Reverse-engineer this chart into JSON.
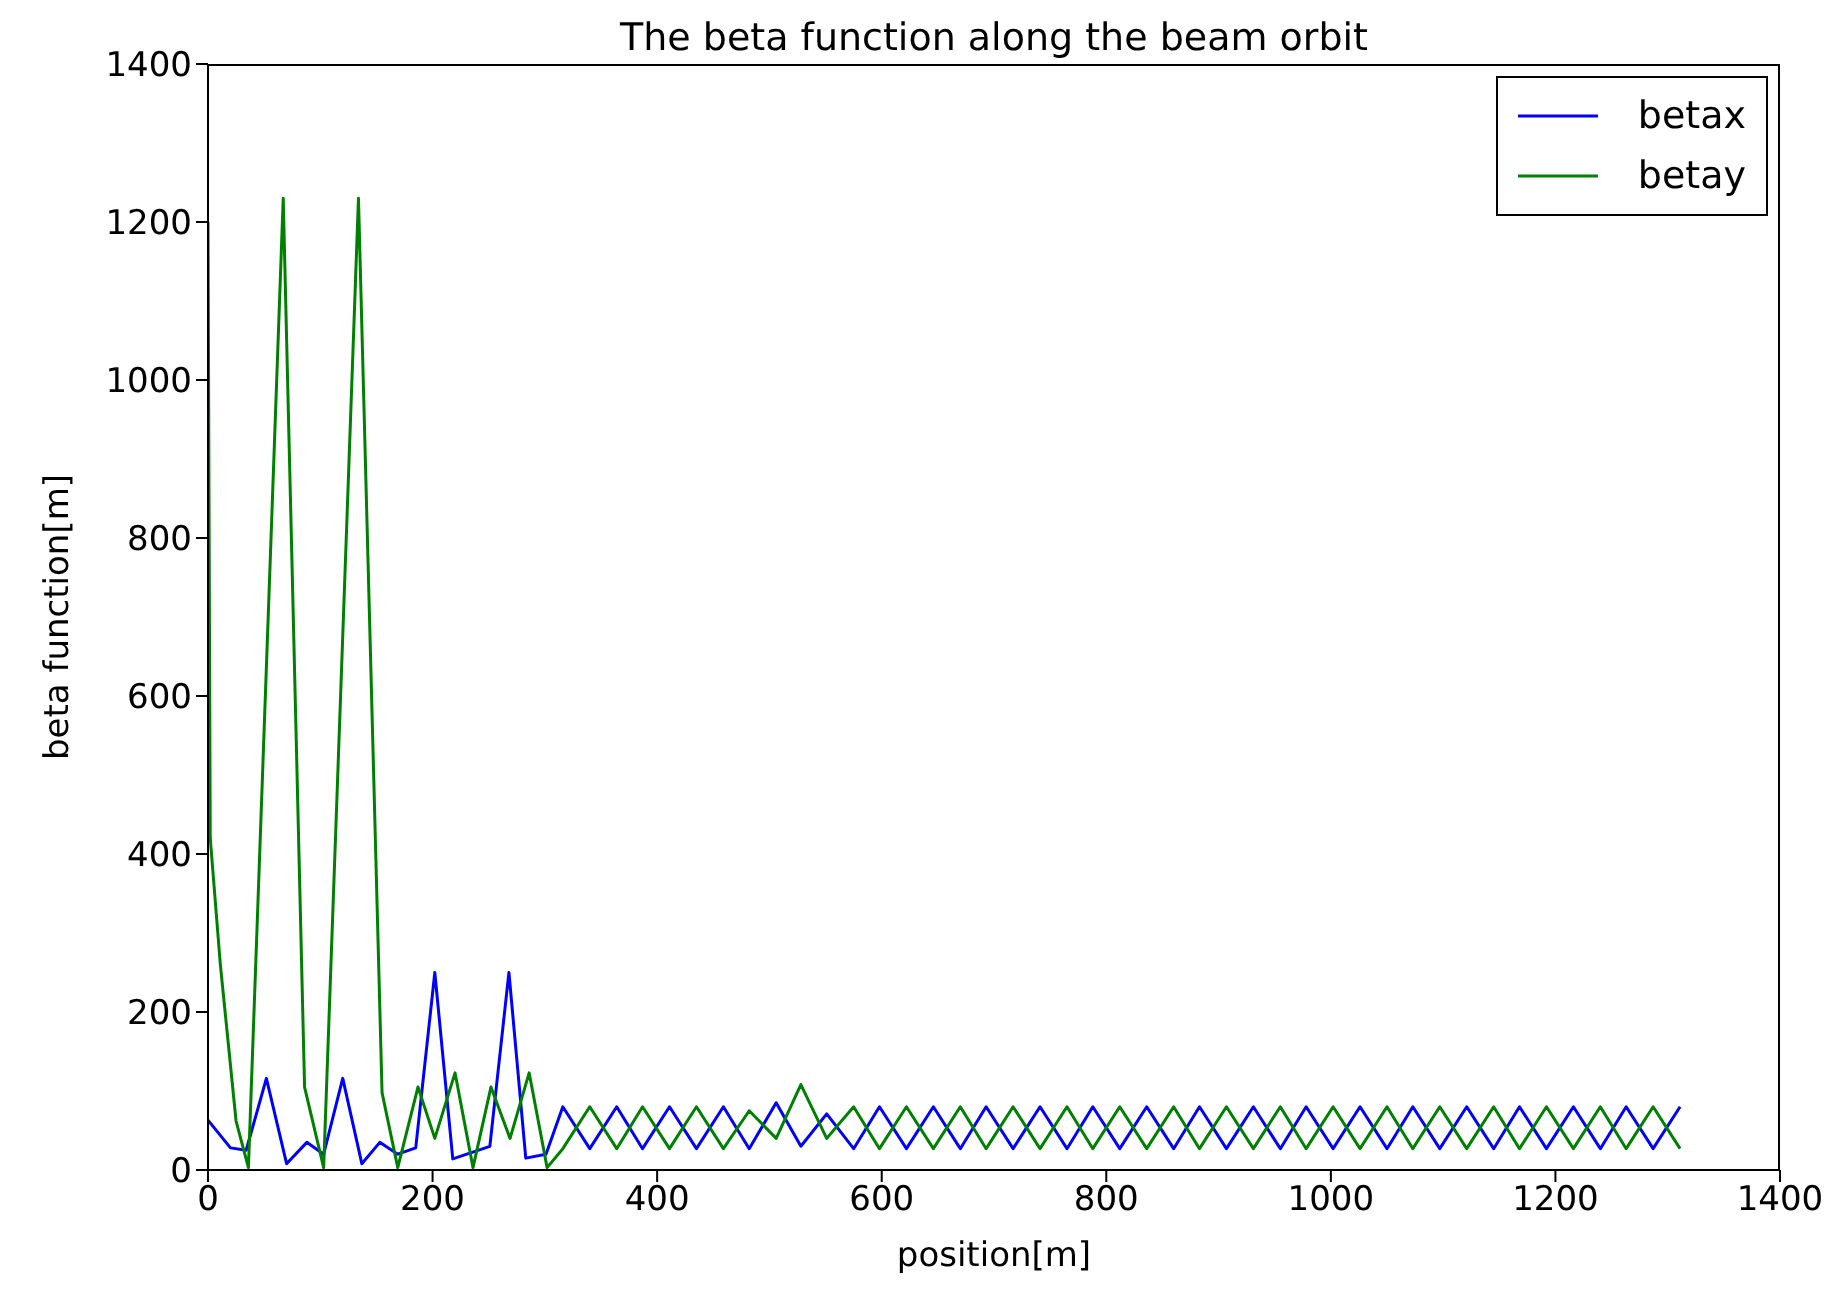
{
  "chart_data": {
    "type": "line",
    "title": "The beta function along the beam orbit",
    "xlabel": "position[m]",
    "ylabel": "beta function[m]",
    "xlim": [
      0,
      1400
    ],
    "ylim": [
      0,
      1400
    ],
    "xticks": [
      0,
      200,
      400,
      600,
      800,
      1000,
      1200,
      1400
    ],
    "yticks": [
      0,
      200,
      400,
      600,
      800,
      1000,
      1200,
      1400
    ],
    "grid": false,
    "legend": "top right",
    "marker": "none",
    "line_style": "solid",
    "series": [
      {
        "name": "betax",
        "color": "#0000ff",
        "x": [
          0,
          20,
          34,
          52,
          70,
          88,
          103,
          120,
          137,
          153,
          169,
          185,
          202,
          218,
          251,
          268,
          283,
          301,
          316,
          340,
          364,
          387,
          411,
          435,
          459,
          482,
          506,
          528,
          551,
          575,
          598,
          622,
          646,
          670,
          693,
          717,
          741,
          765,
          788,
          812,
          836,
          860,
          883,
          907,
          931,
          955,
          978,
          1002,
          1026,
          1050,
          1073,
          1097,
          1121,
          1145,
          1168,
          1192,
          1216,
          1240,
          1263,
          1287,
          1311
        ],
        "values": [
          63,
          28,
          25,
          116,
          8,
          35,
          20,
          116,
          8,
          35,
          20,
          28,
          250,
          14,
          30,
          250,
          15,
          20,
          80,
          27,
          80,
          27,
          80,
          27,
          80,
          27,
          85,
          30,
          71,
          27,
          80,
          27,
          80,
          27,
          80,
          27,
          80,
          27,
          80,
          27,
          80,
          27,
          80,
          27,
          80,
          27,
          80,
          27,
          80,
          27,
          80,
          27,
          80,
          27,
          80,
          27,
          80,
          27,
          80,
          27,
          80
        ]
      },
      {
        "name": "betay",
        "color": "#008000",
        "x": [
          0,
          2,
          11,
          25,
          36,
          67,
          86,
          103,
          134,
          155,
          169,
          187,
          202,
          220,
          236,
          252,
          269,
          286,
          302,
          316,
          340,
          364,
          387,
          411,
          435,
          459,
          482,
          506,
          528,
          551,
          575,
          598,
          622,
          646,
          670,
          693,
          717,
          741,
          765,
          788,
          812,
          836,
          860,
          883,
          907,
          931,
          955,
          978,
          1002,
          1026,
          1050,
          1073,
          1097,
          1121,
          1145,
          1168,
          1192,
          1216,
          1240,
          1263,
          1287,
          1311
        ],
        "values": [
          1200,
          420,
          260,
          62,
          3,
          1230,
          105,
          3,
          1230,
          98,
          3,
          105,
          40,
          123,
          3,
          105,
          40,
          123,
          3,
          27,
          80,
          27,
          80,
          27,
          80,
          27,
          75,
          40,
          108,
          40,
          80,
          27,
          80,
          27,
          80,
          27,
          80,
          27,
          80,
          27,
          80,
          27,
          80,
          27,
          80,
          27,
          80,
          27,
          80,
          27,
          80,
          27,
          80,
          27,
          80,
          27,
          80,
          27,
          80,
          27,
          80,
          27
        ]
      }
    ]
  }
}
